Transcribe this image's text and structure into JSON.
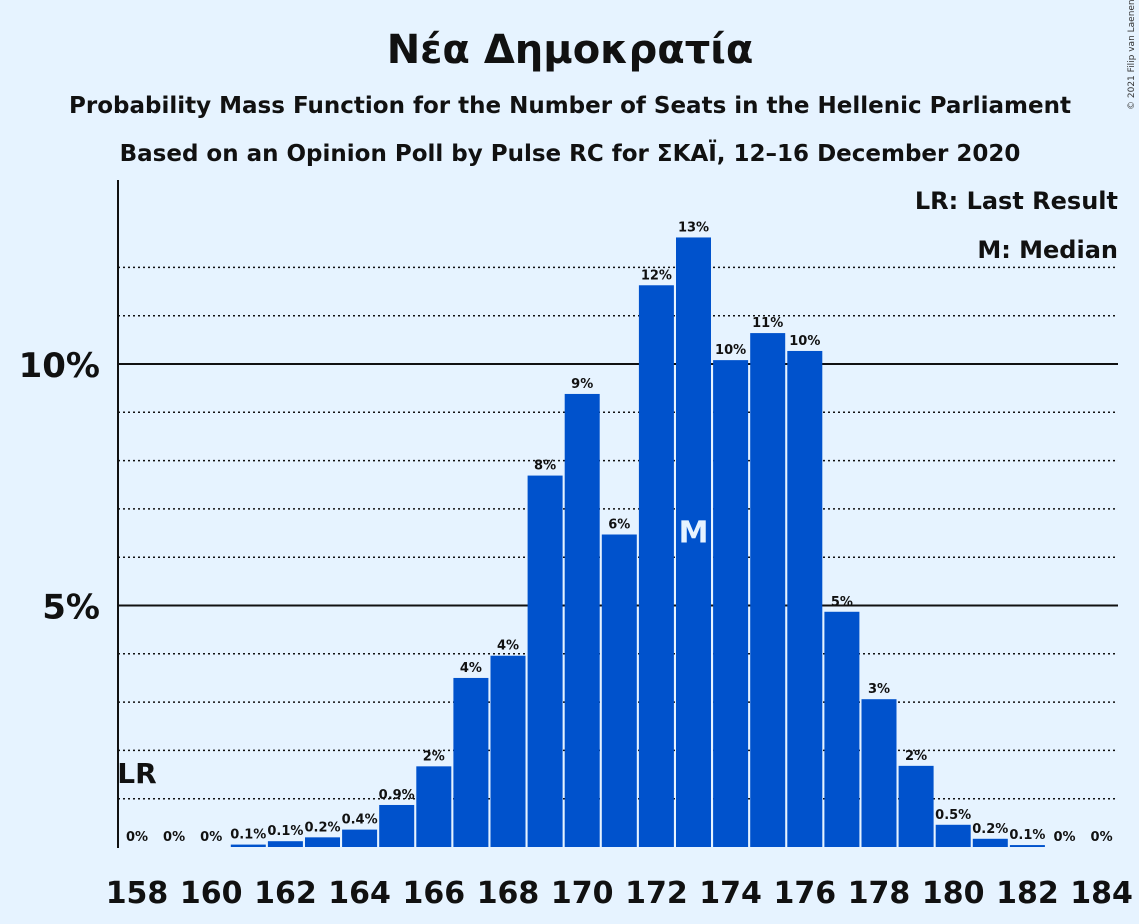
{
  "copyright": "© 2021 Filip van Laenen",
  "chart_data": {
    "type": "bar",
    "title": "Νέα Δημοκρατία",
    "subtitle": "Probability Mass Function for the Number of Seats in the Hellenic Parliament",
    "subtitle2": "Based on an Opinion Poll by Pulse RC for ΣΚΑΪ, 12–16 December 2020",
    "legend": {
      "lr": "LR: Last Result",
      "median": "M: Median"
    },
    "lr_marker": "LR",
    "median_marker": "M",
    "last_result_seat": 158,
    "median_seat": 173,
    "bar_color": "#0052cc",
    "ylim": [
      0,
      13.8
    ],
    "yticks": [
      {
        "value": 5,
        "label": "5%"
      },
      {
        "value": 10,
        "label": "10%"
      }
    ],
    "dotted_gridlines": [
      1,
      2,
      3,
      4,
      6,
      7,
      8,
      9,
      11,
      12
    ],
    "xtick_labels": [
      "158",
      "160",
      "162",
      "164",
      "166",
      "168",
      "170",
      "172",
      "174",
      "176",
      "178",
      "180",
      "182",
      "184"
    ],
    "xtick_values": [
      158,
      160,
      162,
      164,
      166,
      168,
      170,
      172,
      174,
      176,
      178,
      180,
      182,
      184
    ],
    "bars": [
      {
        "seats": 158,
        "value": 0,
        "label": "0%"
      },
      {
        "seats": 159,
        "value": 0,
        "label": "0%"
      },
      {
        "seats": 160,
        "value": 0,
        "label": "0%"
      },
      {
        "seats": 161,
        "value": 0.05,
        "label": "0.1%"
      },
      {
        "seats": 162,
        "value": 0.12,
        "label": "0.1%"
      },
      {
        "seats": 163,
        "value": 0.2,
        "label": "0.2%"
      },
      {
        "seats": 164,
        "value": 0.36,
        "label": "0.4%"
      },
      {
        "seats": 165,
        "value": 0.87,
        "label": "0.9%"
      },
      {
        "seats": 166,
        "value": 1.67,
        "label": "2%"
      },
      {
        "seats": 167,
        "value": 3.5,
        "label": "4%"
      },
      {
        "seats": 168,
        "value": 3.96,
        "label": "4%"
      },
      {
        "seats": 169,
        "value": 7.69,
        "label": "8%"
      },
      {
        "seats": 170,
        "value": 9.38,
        "label": "9%"
      },
      {
        "seats": 171,
        "value": 6.47,
        "label": "6%"
      },
      {
        "seats": 172,
        "value": 11.63,
        "label": "12%"
      },
      {
        "seats": 173,
        "value": 12.62,
        "label": "13%"
      },
      {
        "seats": 174,
        "value": 10.08,
        "label": "10%"
      },
      {
        "seats": 175,
        "value": 10.64,
        "label": "11%"
      },
      {
        "seats": 176,
        "value": 10.27,
        "label": "10%"
      },
      {
        "seats": 177,
        "value": 4.87,
        "label": "5%"
      },
      {
        "seats": 178,
        "value": 3.06,
        "label": "3%"
      },
      {
        "seats": 179,
        "value": 1.68,
        "label": "2%"
      },
      {
        "seats": 180,
        "value": 0.46,
        "label": "0.5%"
      },
      {
        "seats": 181,
        "value": 0.17,
        "label": "0.2%"
      },
      {
        "seats": 182,
        "value": 0.04,
        "label": "0.1%"
      },
      {
        "seats": 183,
        "value": 0,
        "label": "0%"
      },
      {
        "seats": 184,
        "value": 0,
        "label": "0%"
      }
    ]
  }
}
